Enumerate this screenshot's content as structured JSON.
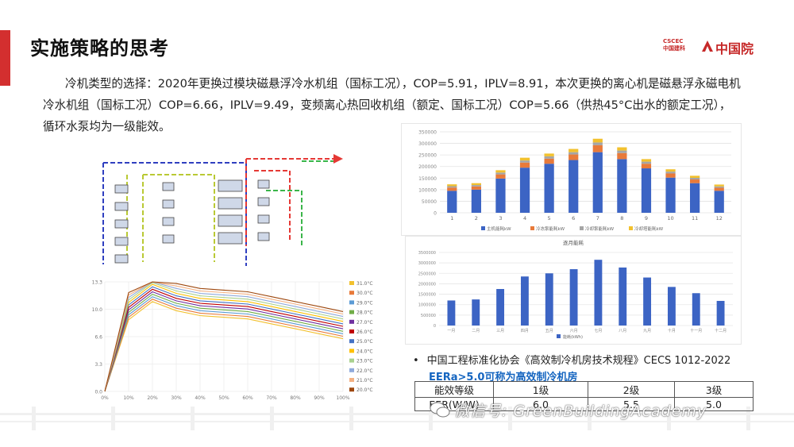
{
  "slide": {
    "title": "实施策略的思考",
    "paragraph": "冷机类型的选择：2020年更换过模块磁悬浮冷水机组（国标工况），COP=5.91，IPLV=8.91，本次更换的离心机是磁悬浮永磁电机冷水机组（国标工况）COP=6.66，IPLV=9.49，变频离心热回收机组（额定、国标工况）COP=5.66（供热45°C出水的额定工况），循环水泵均为一级能效。"
  },
  "logo": {
    "small_text_1": "CSCEC",
    "small_text_2": "中国建科",
    "main_text": "中国院",
    "brand_color": "#c62828"
  },
  "standard": {
    "bullet": "•",
    "line1": "中国工程标准化协会《高效制冷机房技术规程》CECS 1012-2022",
    "line2": "EERa>5.0可称为高效制冷机房"
  },
  "grade_table": {
    "header": [
      "能效等级",
      "1级",
      "2级",
      "3级"
    ],
    "row": [
      "EER(W/W)",
      "6.0",
      "5.5",
      "5.0"
    ]
  },
  "watermark": {
    "text": "微信号: GreenBuildingAcademy"
  },
  "chart_data": [
    {
      "type": "bar",
      "stacked": true,
      "categories": [
        "1",
        "2",
        "3",
        "4",
        "5",
        "6",
        "7",
        "8",
        "9",
        "10",
        "11",
        "12"
      ],
      "ylim": [
        0,
        350000
      ],
      "yticks": [
        "0",
        "50000",
        "100000",
        "150000",
        "200000",
        "250000",
        "300000",
        "350000"
      ],
      "series": [
        {
          "name": "主机能耗kW",
          "color": "#3c64c4",
          "values": [
            95000,
            100000,
            148000,
            195000,
            212000,
            228000,
            262000,
            232000,
            192000,
            152000,
            128000,
            95000
          ]
        },
        {
          "name": "冷冻泵能耗kW",
          "color": "#e87a3a",
          "values": [
            14000,
            14000,
            18000,
            22000,
            22000,
            24000,
            30000,
            26000,
            20000,
            18000,
            16000,
            13000
          ]
        },
        {
          "name": "冷却泵能耗kW",
          "color": "#a5a5a5",
          "values": [
            6000,
            6000,
            8000,
            9000,
            10000,
            10000,
            12000,
            11000,
            9000,
            8000,
            7000,
            6000
          ]
        },
        {
          "name": "冷却塔能耗kW",
          "color": "#f2c12e",
          "values": [
            8000,
            8000,
            10000,
            12000,
            12000,
            14000,
            16000,
            14000,
            11000,
            10000,
            9000,
            8000
          ]
        }
      ]
    },
    {
      "type": "bar",
      "title": "逐月能耗",
      "categories": [
        "一月",
        "二月",
        "三月",
        "四月",
        "五月",
        "六月",
        "七月",
        "八月",
        "九月",
        "十月",
        "十一月",
        "十二月"
      ],
      "ylim": [
        0,
        3500000
      ],
      "yticks": [
        "0",
        "500000",
        "1000000",
        "1500000",
        "2000000",
        "2500000",
        "3000000",
        "3500000"
      ],
      "series": [
        {
          "name": "能耗(kWh)",
          "color": "#3c64c4",
          "values": [
            1200000,
            1250000,
            1750000,
            2350000,
            2500000,
            2700000,
            3150000,
            2780000,
            2300000,
            1850000,
            1550000,
            1180000
          ]
        }
      ]
    },
    {
      "type": "line",
      "xlabel": "",
      "ylabel": "",
      "x": [
        0,
        10,
        20,
        30,
        40,
        50,
        60,
        70,
        80,
        90,
        100
      ],
      "xticks": [
        "0%",
        "10%",
        "20%",
        "30%",
        "40%",
        "50%",
        "60%",
        "70%",
        "80%",
        "90%",
        "100%"
      ],
      "ylim": [
        0,
        13.3
      ],
      "yticks": [
        "0.0",
        "3.3",
        "6.6",
        "10.0",
        "13.3"
      ],
      "series": [
        {
          "name": "31.0°C",
          "color": "#f2c12e",
          "values": [
            0,
            8.7,
            10.9,
            9.8,
            9.2,
            9.0,
            8.8,
            8.2,
            7.6,
            7.0,
            6.4
          ]
        },
        {
          "name": "30.0°C",
          "color": "#e87a3a",
          "values": [
            0,
            9.0,
            11.2,
            10.1,
            9.5,
            9.3,
            9.1,
            8.5,
            7.9,
            7.3,
            6.7
          ]
        },
        {
          "name": "29.0°C",
          "color": "#5b9bd5",
          "values": [
            0,
            9.3,
            11.5,
            10.4,
            9.8,
            9.6,
            9.4,
            8.8,
            8.2,
            7.6,
            7.0
          ]
        },
        {
          "name": "28.0°C",
          "color": "#70ad47",
          "values": [
            0,
            9.6,
            11.8,
            10.7,
            10.1,
            9.9,
            9.7,
            9.1,
            8.5,
            7.9,
            7.3
          ]
        },
        {
          "name": "27.0°C",
          "color": "#7030a0",
          "values": [
            0,
            9.9,
            12.1,
            11.0,
            10.4,
            10.2,
            10.0,
            9.4,
            8.8,
            8.2,
            7.6
          ]
        },
        {
          "name": "26.0°C",
          "color": "#c00000",
          "values": [
            0,
            10.2,
            12.4,
            11.3,
            10.7,
            10.5,
            10.3,
            9.7,
            9.1,
            8.5,
            7.9
          ]
        },
        {
          "name": "25.0°C",
          "color": "#4472c4",
          "values": [
            0,
            10.5,
            12.7,
            11.6,
            11.0,
            10.8,
            10.6,
            10.0,
            9.4,
            8.8,
            8.2
          ]
        },
        {
          "name": "24.0°C",
          "color": "#ffc000",
          "values": [
            0,
            10.8,
            13.0,
            11.9,
            11.3,
            11.1,
            10.9,
            10.3,
            9.7,
            9.1,
            8.5
          ]
        },
        {
          "name": "23.0°C",
          "color": "#a9d18e",
          "values": [
            0,
            11.1,
            13.2,
            12.2,
            11.6,
            11.4,
            11.2,
            10.6,
            10.0,
            9.4,
            8.8
          ]
        },
        {
          "name": "22.0°C",
          "color": "#8faadc",
          "values": [
            0,
            11.4,
            13.3,
            12.5,
            11.9,
            11.7,
            11.5,
            10.9,
            10.3,
            9.7,
            9.1
          ]
        },
        {
          "name": "21.0°C",
          "color": "#f4b183",
          "values": [
            0,
            11.7,
            13.3,
            12.8,
            12.2,
            12.0,
            11.8,
            11.2,
            10.6,
            10.0,
            9.4
          ]
        },
        {
          "name": "20.0°C",
          "color": "#9e480e",
          "values": [
            0,
            12.0,
            13.3,
            13.1,
            12.5,
            12.3,
            12.1,
            11.5,
            10.9,
            10.3,
            9.7
          ]
        }
      ]
    }
  ],
  "colors": {
    "accent": "#d32f2f",
    "pipe_chilled": "#2f3fc0",
    "pipe_cooling": "#b9c934",
    "pipe_hot": "#e53935",
    "pipe_green": "#3bb54a"
  }
}
